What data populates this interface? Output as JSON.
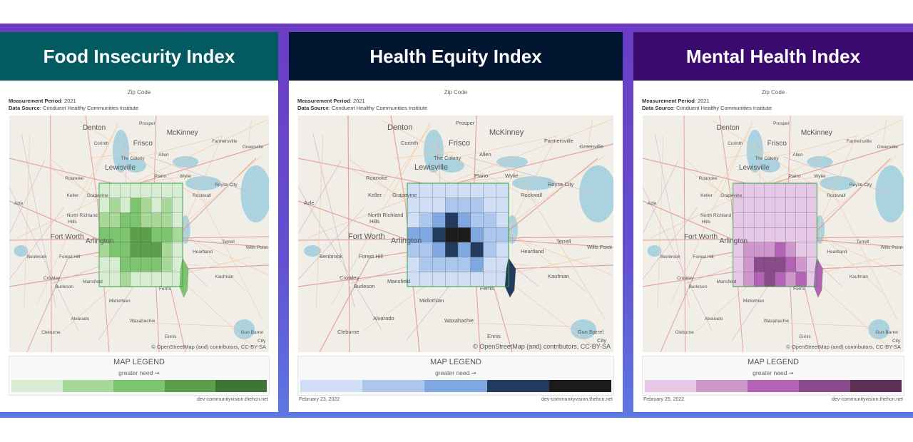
{
  "panels": [
    {
      "title": "Food Insecurity Index",
      "header_color": "#035a60",
      "zip_code_label": "Zip Code",
      "measurement_period_label": "Measurement Period",
      "measurement_period": ": 2021",
      "data_source_label": "Data Source",
      "data_source": ": Conduent Healthy Communities Institute",
      "legend_title": "MAP LEGEND",
      "legend_subtitle": "greater need ➞",
      "legend_colors": [
        "#d6edd1",
        "#a7d898",
        "#7cc46d",
        "#5c9f4a",
        "#3f7437"
      ],
      "date": "",
      "site": "dev-communityvision.thehcn.net"
    },
    {
      "title": "Health Equity Index",
      "header_color": "#021631",
      "zip_code_label": "Zip Code",
      "measurement_period_label": "Measurement Period",
      "measurement_period": ": 2021",
      "data_source_label": "Data Source",
      "data_source": ": Conduent Healthy Communities Institute",
      "legend_title": "MAP LEGEND",
      "legend_subtitle": "greater need ➞",
      "legend_colors": [
        "#d0dff5",
        "#abc7ee",
        "#80a8e0",
        "#233a5f",
        "#1b1b1b"
      ],
      "date": "February 23, 2022",
      "site": "dev-communityvision.thehcn.net"
    },
    {
      "title": "Mental Health Index",
      "header_color": "#3b0a6f",
      "zip_code_label": "Zip Code",
      "measurement_period_label": "Measurement Period",
      "measurement_period": ": 2021",
      "data_source_label": "Data Source",
      "data_source": ": Conduent Healthy Communities Institute",
      "legend_title": "MAP LEGEND",
      "legend_subtitle": "greater need ➞",
      "legend_colors": [
        "#e5c8e6",
        "#cf98cd",
        "#b263b6",
        "#8a4b8b",
        "#5a3055"
      ],
      "date": "February 25, 2022",
      "site": "dev-communityvision.thehcn.net"
    }
  ],
  "map": {
    "attribution": "© OpenStreetMap (and) contributors, CC-BY-SA",
    "cities": [
      "Denton",
      "Prosper",
      "McKinney",
      "Farmersville",
      "Greenville",
      "Corinth",
      "Frisco",
      "The Colony",
      "Allen",
      "Lewisville",
      "Plano",
      "Wylie",
      "Royse City",
      "Roanoke",
      "Keller",
      "Grapevine",
      "Rockwall",
      "Azle",
      "North Richland",
      "Hills",
      "Fort Worth",
      "Arlington",
      "Terrell",
      "Wills Point",
      "Benbrook",
      "Forest Hill",
      "Heartland",
      "Kaufman",
      "Crowley",
      "Burleson",
      "Mansfield",
      "Ferris",
      "Midlothian",
      "Alvarado",
      "Waxahachie",
      "Cleburne",
      "Ennis",
      "Gun Barrel",
      "City"
    ]
  }
}
